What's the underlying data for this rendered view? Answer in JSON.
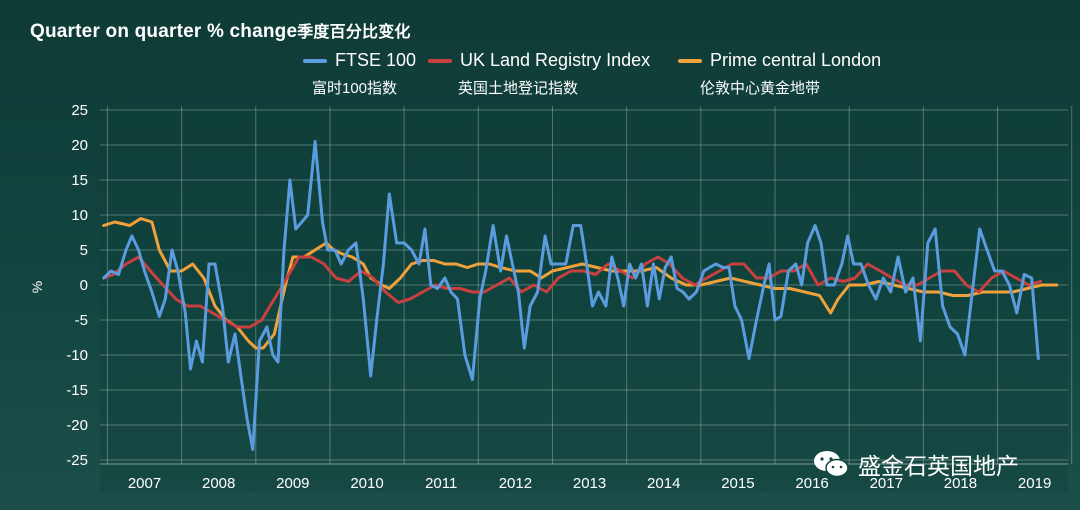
{
  "header": {
    "title_en": "Quarter on quarter % change",
    "title_cn": "季度百分比变化"
  },
  "legend": [
    {
      "label": "FTSE 100",
      "label_cn": "富时100指数",
      "color": "#5b9be0"
    },
    {
      "label": "UK Land Registry Index",
      "label_cn": "英国土地登记指数",
      "color": "#c8403f"
    },
    {
      "label": "Prime central London",
      "label_cn": "伦敦中心黄金地带",
      "color": "#f0a13a"
    }
  ],
  "watermark": {
    "text": "盛金石英国地产",
    "icon": "wechat-icon"
  },
  "chart_data": {
    "type": "line",
    "title": "Quarter on quarter % change",
    "ylabel": "%",
    "xlabel": "",
    "ylim": [
      -25,
      25
    ],
    "xlim": [
      2006.9,
      2019.95
    ],
    "yticks": [
      25,
      20,
      15,
      10,
      5,
      0,
      -5,
      -10,
      -15,
      -20,
      -25
    ],
    "xtick_labels": [
      "2007",
      "2008",
      "2009",
      "2010",
      "2011",
      "2012",
      "2013",
      "2014",
      "2015",
      "2016",
      "2017",
      "2018",
      "2019"
    ],
    "grid": true,
    "series": [
      {
        "name": "FTSE 100",
        "color": "#5b9be0",
        "points": [
          [
            2006.95,
            1
          ],
          [
            2007.05,
            2
          ],
          [
            2007.15,
            1.5
          ],
          [
            2007.25,
            5
          ],
          [
            2007.33,
            7
          ],
          [
            2007.42,
            5
          ],
          [
            2007.5,
            2
          ],
          [
            2007.6,
            -1
          ],
          [
            2007.7,
            -4.5
          ],
          [
            2007.78,
            -2
          ],
          [
            2007.87,
            5
          ],
          [
            2007.95,
            2
          ],
          [
            2008.05,
            -4
          ],
          [
            2008.12,
            -12
          ],
          [
            2008.2,
            -8
          ],
          [
            2008.28,
            -11
          ],
          [
            2008.37,
            3
          ],
          [
            2008.45,
            3
          ],
          [
            2008.55,
            -3
          ],
          [
            2008.63,
            -11
          ],
          [
            2008.72,
            -7
          ],
          [
            2008.8,
            -13
          ],
          [
            2008.88,
            -19
          ],
          [
            2008.96,
            -23.5
          ],
          [
            2009.05,
            -8
          ],
          [
            2009.15,
            -6
          ],
          [
            2009.23,
            -10
          ],
          [
            2009.3,
            -11
          ],
          [
            2009.38,
            5
          ],
          [
            2009.46,
            15
          ],
          [
            2009.54,
            8
          ],
          [
            2009.62,
            9
          ],
          [
            2009.7,
            10
          ],
          [
            2009.8,
            20.5
          ],
          [
            2009.9,
            9
          ],
          [
            2009.97,
            5
          ],
          [
            2010.07,
            5
          ],
          [
            2010.15,
            3
          ],
          [
            2010.25,
            5
          ],
          [
            2010.35,
            6
          ],
          [
            2010.45,
            -2
          ],
          [
            2010.55,
            -13
          ],
          [
            2010.63,
            -5
          ],
          [
            2010.72,
            3
          ],
          [
            2010.8,
            13
          ],
          [
            2010.9,
            6
          ],
          [
            2011.0,
            6
          ],
          [
            2011.1,
            5
          ],
          [
            2011.2,
            3
          ],
          [
            2011.28,
            8
          ],
          [
            2011.36,
            0
          ],
          [
            2011.45,
            -0.5
          ],
          [
            2011.55,
            1
          ],
          [
            2011.63,
            -1
          ],
          [
            2011.72,
            -2
          ],
          [
            2011.82,
            -10
          ],
          [
            2011.92,
            -13.5
          ],
          [
            2012.02,
            -2
          ],
          [
            2012.1,
            2
          ],
          [
            2012.2,
            8.5
          ],
          [
            2012.3,
            2
          ],
          [
            2012.38,
            7
          ],
          [
            2012.46,
            3
          ],
          [
            2012.54,
            -1
          ],
          [
            2012.62,
            -9
          ],
          [
            2012.7,
            -3
          ],
          [
            2012.8,
            -1
          ],
          [
            2012.9,
            7
          ],
          [
            2012.98,
            3
          ],
          [
            2013.08,
            3
          ],
          [
            2013.18,
            3
          ],
          [
            2013.28,
            8.5
          ],
          [
            2013.38,
            8.5
          ],
          [
            2013.46,
            3
          ],
          [
            2013.54,
            -3
          ],
          [
            2013.62,
            -1
          ],
          [
            2013.72,
            -3
          ],
          [
            2013.8,
            4
          ],
          [
            2013.88,
            1
          ],
          [
            2013.96,
            -3
          ],
          [
            2014.04,
            3
          ],
          [
            2014.12,
            1
          ],
          [
            2014.2,
            3
          ],
          [
            2014.28,
            -3
          ],
          [
            2014.36,
            3
          ],
          [
            2014.44,
            -2
          ],
          [
            2014.52,
            2.5
          ],
          [
            2014.6,
            4
          ],
          [
            2014.68,
            -0.5
          ],
          [
            2014.76,
            -1
          ],
          [
            2014.84,
            -2
          ],
          [
            2014.94,
            -1
          ],
          [
            2015.04,
            2
          ],
          [
            2015.12,
            2.5
          ],
          [
            2015.2,
            3
          ],
          [
            2015.3,
            2.5
          ],
          [
            2015.38,
            2.5
          ],
          [
            2015.46,
            -3
          ],
          [
            2015.55,
            -5
          ],
          [
            2015.65,
            -10.5
          ],
          [
            2015.75,
            -5
          ],
          [
            2015.85,
            0
          ],
          [
            2015.92,
            3
          ],
          [
            2016.0,
            -5
          ],
          [
            2016.08,
            -4.5
          ],
          [
            2016.18,
            2
          ],
          [
            2016.28,
            3
          ],
          [
            2016.36,
            0
          ],
          [
            2016.44,
            6
          ],
          [
            2016.54,
            8.5
          ],
          [
            2016.62,
            6
          ],
          [
            2016.7,
            0
          ],
          [
            2016.8,
            0
          ],
          [
            2016.9,
            3
          ],
          [
            2016.98,
            7
          ],
          [
            2017.06,
            3
          ],
          [
            2017.16,
            3
          ],
          [
            2017.26,
            0
          ],
          [
            2017.36,
            -2
          ],
          [
            2017.46,
            1
          ],
          [
            2017.56,
            -1
          ],
          [
            2017.66,
            4
          ],
          [
            2017.76,
            -1
          ],
          [
            2017.86,
            1
          ],
          [
            2017.96,
            -8
          ],
          [
            2018.06,
            6
          ],
          [
            2018.16,
            8
          ],
          [
            2018.26,
            -3
          ],
          [
            2018.36,
            -6
          ],
          [
            2018.46,
            -7
          ],
          [
            2018.56,
            -10
          ],
          [
            2018.66,
            -1
          ],
          [
            2018.76,
            8
          ],
          [
            2018.86,
            5
          ],
          [
            2018.96,
            2
          ],
          [
            2019.06,
            2
          ],
          [
            2019.16,
            0
          ],
          [
            2019.26,
            -4
          ],
          [
            2019.36,
            1.5
          ],
          [
            2019.46,
            1
          ],
          [
            2019.55,
            -10.5
          ]
        ]
      },
      {
        "name": "UK Land Registry Index",
        "color": "#c8403f",
        "points": [
          [
            2006.95,
            1
          ],
          [
            2007.08,
            1.5
          ],
          [
            2007.25,
            3
          ],
          [
            2007.42,
            4
          ],
          [
            2007.58,
            2
          ],
          [
            2007.75,
            0
          ],
          [
            2007.92,
            -2
          ],
          [
            2008.08,
            -3
          ],
          [
            2008.25,
            -3
          ],
          [
            2008.42,
            -4
          ],
          [
            2008.58,
            -5
          ],
          [
            2008.75,
            -6
          ],
          [
            2008.92,
            -6
          ],
          [
            2009.08,
            -5
          ],
          [
            2009.25,
            -2
          ],
          [
            2009.42,
            1
          ],
          [
            2009.58,
            4
          ],
          [
            2009.75,
            4
          ],
          [
            2009.92,
            3
          ],
          [
            2010.08,
            1
          ],
          [
            2010.25,
            0.5
          ],
          [
            2010.42,
            2
          ],
          [
            2010.58,
            1
          ],
          [
            2010.75,
            -1
          ],
          [
            2010.92,
            -2.5
          ],
          [
            2011.08,
            -2
          ],
          [
            2011.25,
            -1
          ],
          [
            2011.42,
            0
          ],
          [
            2011.58,
            -0.5
          ],
          [
            2011.75,
            -0.5
          ],
          [
            2011.92,
            -1
          ],
          [
            2012.08,
            -1
          ],
          [
            2012.25,
            0
          ],
          [
            2012.42,
            1
          ],
          [
            2012.58,
            -1
          ],
          [
            2012.75,
            0
          ],
          [
            2012.92,
            -1
          ],
          [
            2013.08,
            1
          ],
          [
            2013.25,
            2
          ],
          [
            2013.42,
            2
          ],
          [
            2013.58,
            1.5
          ],
          [
            2013.75,
            3
          ],
          [
            2013.92,
            2
          ],
          [
            2014.08,
            1
          ],
          [
            2014.25,
            3
          ],
          [
            2014.42,
            4
          ],
          [
            2014.58,
            3
          ],
          [
            2014.75,
            1
          ],
          [
            2014.92,
            0
          ],
          [
            2015.08,
            1
          ],
          [
            2015.25,
            2
          ],
          [
            2015.42,
            3
          ],
          [
            2015.58,
            3
          ],
          [
            2015.75,
            1
          ],
          [
            2015.92,
            1
          ],
          [
            2016.08,
            2
          ],
          [
            2016.25,
            2
          ],
          [
            2016.42,
            3
          ],
          [
            2016.58,
            0
          ],
          [
            2016.75,
            1
          ],
          [
            2016.92,
            0.5
          ],
          [
            2017.08,
            1
          ],
          [
            2017.25,
            3
          ],
          [
            2017.42,
            2
          ],
          [
            2017.58,
            1
          ],
          [
            2017.75,
            0
          ],
          [
            2017.92,
            0
          ],
          [
            2018.08,
            1
          ],
          [
            2018.25,
            2
          ],
          [
            2018.42,
            2
          ],
          [
            2018.58,
            0
          ],
          [
            2018.75,
            -1
          ],
          [
            2018.92,
            1
          ],
          [
            2019.08,
            2
          ],
          [
            2019.25,
            1
          ],
          [
            2019.42,
            0
          ],
          [
            2019.58,
            0.5
          ]
        ]
      },
      {
        "name": "Prime central London",
        "color": "#f0a13a",
        "points": [
          [
            2006.95,
            8.5
          ],
          [
            2007.1,
            9
          ],
          [
            2007.3,
            8.5
          ],
          [
            2007.45,
            9.5
          ],
          [
            2007.6,
            9
          ],
          [
            2007.7,
            5
          ],
          [
            2007.85,
            2
          ],
          [
            2008.0,
            2
          ],
          [
            2008.15,
            3
          ],
          [
            2008.3,
            1
          ],
          [
            2008.45,
            -3
          ],
          [
            2008.6,
            -5
          ],
          [
            2008.75,
            -6
          ],
          [
            2008.9,
            -8
          ],
          [
            2009.0,
            -9
          ],
          [
            2009.1,
            -9
          ],
          [
            2009.25,
            -7
          ],
          [
            2009.4,
            0
          ],
          [
            2009.5,
            4
          ],
          [
            2009.65,
            4
          ],
          [
            2009.8,
            5
          ],
          [
            2009.95,
            6
          ],
          [
            2010.05,
            5
          ],
          [
            2010.15,
            4.5
          ],
          [
            2010.3,
            4
          ],
          [
            2010.45,
            3
          ],
          [
            2010.55,
            1
          ],
          [
            2010.7,
            0
          ],
          [
            2010.8,
            -0.5
          ],
          [
            2010.95,
            1
          ],
          [
            2011.1,
            3
          ],
          [
            2011.25,
            3.5
          ],
          [
            2011.4,
            3.5
          ],
          [
            2011.55,
            3
          ],
          [
            2011.7,
            3
          ],
          [
            2011.85,
            2.5
          ],
          [
            2012.0,
            3
          ],
          [
            2012.15,
            3
          ],
          [
            2012.3,
            2.5
          ],
          [
            2012.5,
            2
          ],
          [
            2012.7,
            2
          ],
          [
            2012.85,
            1
          ],
          [
            2013.0,
            2
          ],
          [
            2013.2,
            2.5
          ],
          [
            2013.4,
            3
          ],
          [
            2013.6,
            2.5
          ],
          [
            2013.8,
            2
          ],
          [
            2014.0,
            2
          ],
          [
            2014.2,
            2
          ],
          [
            2014.4,
            2.5
          ],
          [
            2014.6,
            1
          ],
          [
            2014.8,
            0
          ],
          [
            2015.0,
            0
          ],
          [
            2015.2,
            0.5
          ],
          [
            2015.4,
            1
          ],
          [
            2015.6,
            0.5
          ],
          [
            2015.8,
            0
          ],
          [
            2016.0,
            -0.5
          ],
          [
            2016.2,
            -0.5
          ],
          [
            2016.4,
            -1
          ],
          [
            2016.6,
            -1.5
          ],
          [
            2016.75,
            -4
          ],
          [
            2016.85,
            -2
          ],
          [
            2017.0,
            0
          ],
          [
            2017.2,
            0
          ],
          [
            2017.4,
            0.5
          ],
          [
            2017.6,
            0
          ],
          [
            2017.8,
            -0.5
          ],
          [
            2018.0,
            -1
          ],
          [
            2018.2,
            -1
          ],
          [
            2018.4,
            -1.5
          ],
          [
            2018.6,
            -1.5
          ],
          [
            2018.8,
            -1
          ],
          [
            2019.0,
            -1
          ],
          [
            2019.2,
            -1
          ],
          [
            2019.4,
            -0.5
          ],
          [
            2019.6,
            0
          ],
          [
            2019.8,
            0
          ]
        ]
      }
    ]
  }
}
